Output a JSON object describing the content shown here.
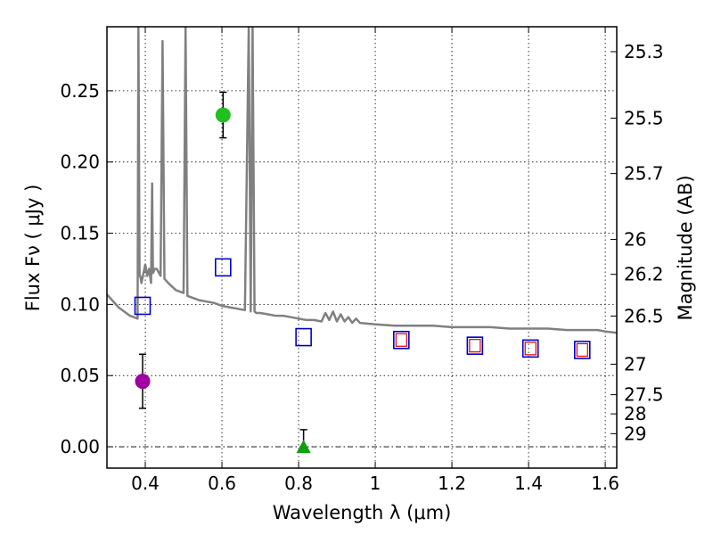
{
  "chart_data": {
    "type": "scatter",
    "xlabel": "Wavelength  λ (μm)",
    "ylabel": "Flux  Fν  ( μJy )",
    "y2label": "Magnitude (AB)",
    "xlim": [
      0.3,
      1.63
    ],
    "ylim": [
      -0.015,
      0.295
    ],
    "xticks": [
      0.4,
      0.6,
      0.8,
      1.0,
      1.2,
      1.4,
      1.6
    ],
    "xtick_labels": [
      "0.4",
      "0.6",
      "0.8",
      "1",
      "1.2",
      "1.4",
      "1.6"
    ],
    "yticks": [
      0.0,
      0.05,
      0.1,
      0.15,
      0.2,
      0.25
    ],
    "ytick_labels": [
      "0.00",
      "0.05",
      "0.10",
      "0.15",
      "0.20",
      "0.25"
    ],
    "y2ticks": [
      {
        "label": "25.3",
        "flux": 0.2775
      },
      {
        "label": "25.5",
        "flux": 0.2308
      },
      {
        "label": "25.7",
        "flux": 0.1919
      },
      {
        "label": "26",
        "flux": 0.1456
      },
      {
        "label": "26.2",
        "flux": 0.1211
      },
      {
        "label": "26.5",
        "flux": 0.0918
      },
      {
        "label": "27",
        "flux": 0.058
      },
      {
        "label": "27.5",
        "flux": 0.0366
      },
      {
        "label": "28",
        "flux": 0.0231
      },
      {
        "label": "29",
        "flux": 0.0092
      }
    ],
    "grid": true,
    "zero_line": 0.0,
    "series": [
      {
        "name": "model-spectrum",
        "style": "line",
        "color": "#808080",
        "x": [
          0.3,
          0.33,
          0.36,
          0.38,
          0.382,
          0.385,
          0.387,
          0.39,
          0.4,
          0.405,
          0.41,
          0.415,
          0.418,
          0.42,
          0.425,
          0.43,
          0.44,
          0.445,
          0.45,
          0.46,
          0.48,
          0.5,
          0.505,
          0.51,
          0.52,
          0.54,
          0.56,
          0.58,
          0.6,
          0.62,
          0.64,
          0.66,
          0.67,
          0.675,
          0.68,
          0.685,
          0.69,
          0.7,
          0.72,
          0.74,
          0.76,
          0.78,
          0.8,
          0.82,
          0.84,
          0.86,
          0.87,
          0.88,
          0.89,
          0.9,
          0.91,
          0.92,
          0.93,
          0.94,
          0.95,
          0.96,
          1.0,
          1.05,
          1.1,
          1.15,
          1.2,
          1.25,
          1.3,
          1.35,
          1.4,
          1.45,
          1.5,
          1.55,
          1.58,
          1.6,
          1.63
        ],
        "y": [
          0.107,
          0.098,
          0.092,
          0.09,
          0.295,
          0.12,
          0.12,
          0.115,
          0.128,
          0.12,
          0.125,
          0.115,
          0.185,
          0.122,
          0.125,
          0.125,
          0.12,
          0.285,
          0.118,
          0.115,
          0.11,
          0.108,
          0.295,
          0.106,
          0.105,
          0.103,
          0.102,
          0.101,
          0.099,
          0.098,
          0.097,
          0.096,
          0.295,
          0.095,
          0.295,
          0.095,
          0.094,
          0.094,
          0.093,
          0.092,
          0.092,
          0.091,
          0.09,
          0.089,
          0.089,
          0.088,
          0.094,
          0.089,
          0.095,
          0.088,
          0.093,
          0.088,
          0.091,
          0.087,
          0.09,
          0.087,
          0.086,
          0.085,
          0.085,
          0.085,
          0.084,
          0.084,
          0.084,
          0.083,
          0.083,
          0.083,
          0.082,
          0.082,
          0.082,
          0.081,
          0.08
        ]
      },
      {
        "name": "observed-magenta",
        "style": "marker",
        "marker": "circle",
        "color": "#a000a0",
        "points": [
          {
            "x": 0.393,
            "y": 0.046,
            "err": 0.019
          }
        ]
      },
      {
        "name": "observed-green",
        "style": "marker",
        "marker": "circle",
        "color": "#20c020",
        "points": [
          {
            "x": 0.603,
            "y": 0.233,
            "err": 0.016
          }
        ]
      },
      {
        "name": "upper-limit-green",
        "style": "marker",
        "marker": "triangle",
        "color": "#10a010",
        "points": [
          {
            "x": 0.813,
            "y": 0.0,
            "err_low": 0.0,
            "err_high": 0.012
          }
        ]
      },
      {
        "name": "model-synthetic-blue",
        "style": "marker",
        "marker": "open-square",
        "color": "#0000cc",
        "points": [
          {
            "x": 0.393,
            "y": 0.099
          },
          {
            "x": 0.603,
            "y": 0.126
          },
          {
            "x": 0.813,
            "y": 0.077
          },
          {
            "x": 1.068,
            "y": 0.075
          },
          {
            "x": 1.26,
            "y": 0.071
          },
          {
            "x": 1.405,
            "y": 0.069
          },
          {
            "x": 1.54,
            "y": 0.068
          }
        ]
      },
      {
        "name": "model-synthetic-red",
        "style": "marker",
        "marker": "open-square-small",
        "color": "#dd0000",
        "points": [
          {
            "x": 1.068,
            "y": 0.075
          },
          {
            "x": 1.26,
            "y": 0.071
          },
          {
            "x": 1.405,
            "y": 0.069
          },
          {
            "x": 1.54,
            "y": 0.068
          }
        ]
      }
    ]
  }
}
